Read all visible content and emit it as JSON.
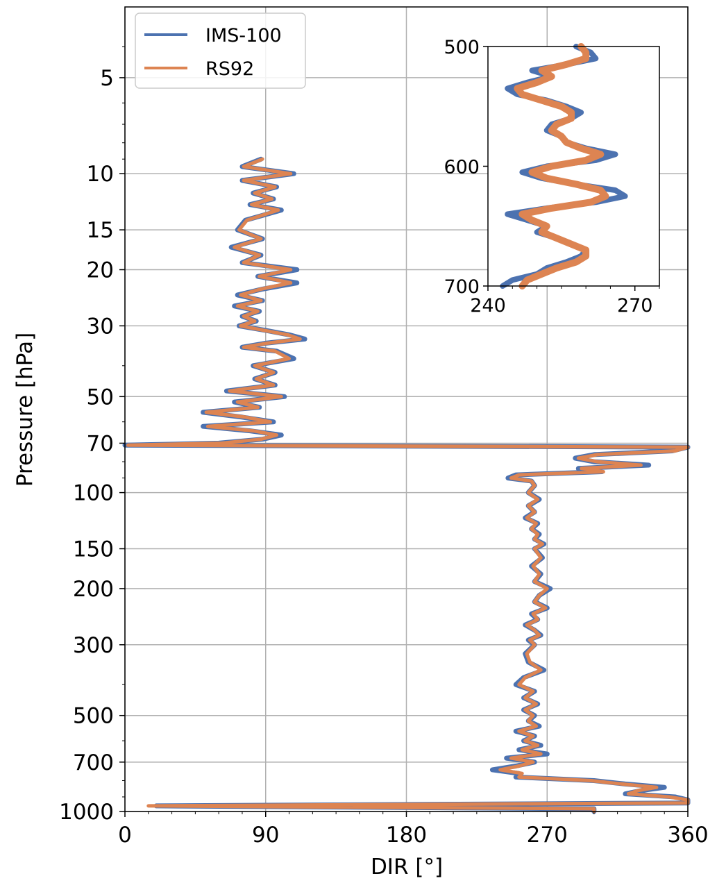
{
  "chart_data": {
    "type": "line",
    "xlabel": "DIR [°]",
    "ylabel": "Pressure [hPa]",
    "xlim": [
      0,
      360
    ],
    "ylim": [
      1000,
      3
    ],
    "yscale": "log",
    "grid": true,
    "legend_position": "top-left",
    "x_ticks": [
      "0",
      "90",
      "180",
      "270",
      "360"
    ],
    "y_ticks": [
      "5",
      "10",
      "15",
      "20",
      "30",
      "50",
      "70",
      "100",
      "150",
      "200",
      "300",
      "500",
      "700",
      "1000"
    ],
    "series": [
      {
        "name": "IMS-100",
        "color": "#4c72b0",
        "y": [
          9,
          9.5,
          10,
          10.5,
          11,
          11.5,
          12,
          12.5,
          13,
          14,
          15,
          16,
          17,
          18,
          19,
          20,
          21,
          22,
          23,
          24,
          25,
          26,
          27,
          28,
          29,
          30,
          31,
          32,
          33,
          34,
          35,
          36,
          38,
          40,
          42,
          44,
          46,
          48,
          50,
          52,
          54,
          56,
          58,
          60,
          62,
          64,
          66,
          68,
          70,
          71,
          72,
          74,
          76,
          78,
          80,
          82,
          84,
          86,
          88,
          90,
          92,
          95,
          100,
          105,
          110,
          115,
          120,
          125,
          130,
          135,
          140,
          145,
          150,
          160,
          170,
          180,
          190,
          200,
          210,
          220,
          230,
          240,
          250,
          260,
          270,
          280,
          290,
          300,
          320,
          340,
          360,
          380,
          400,
          420,
          440,
          460,
          480,
          500,
          520,
          540,
          560,
          580,
          600,
          620,
          640,
          660,
          680,
          700,
          720,
          740,
          760,
          780,
          800,
          820,
          840,
          860,
          880,
          900,
          920,
          940,
          960,
          980,
          1000
        ],
        "x": [
          87,
          75,
          108,
          75,
          97,
          82,
          95,
          80,
          100,
          77,
          72,
          88,
          68,
          87,
          75,
          110,
          85,
          110,
          88,
          72,
          88,
          70,
          86,
          75,
          84,
          73,
          90,
          105,
          115,
          90,
          75,
          97,
          108,
          82,
          96,
          83,
          96,
          65,
          102,
          70,
          86,
          50,
          75,
          95,
          50,
          80,
          100,
          88,
          60,
          0,
          360,
          350,
          300,
          288,
          300,
          335,
          290,
          305,
          250,
          245,
          260,
          262,
          258,
          265,
          258,
          262,
          256,
          264,
          260,
          265,
          262,
          268,
          262,
          267,
          260,
          266,
          262,
          272,
          265,
          262,
          270,
          260,
          264,
          256,
          262,
          266,
          258,
          262,
          256,
          258,
          268,
          255,
          250,
          262,
          255,
          264,
          255,
          262,
          258,
          265,
          250,
          262,
          255,
          266,
          252,
          270,
          244,
          262,
          250,
          235,
          252,
          250,
          300,
          320,
          345,
          330,
          320,
          352,
          360,
          360,
          20,
          300,
          300
        ]
      },
      {
        "name": "RS92",
        "color": "#dd8452",
        "y": [
          9,
          9.5,
          10,
          10.5,
          11,
          11.5,
          12,
          12.5,
          13,
          14,
          15,
          16,
          17,
          18,
          19,
          20,
          21,
          22,
          23,
          24,
          25,
          26,
          27,
          28,
          29,
          30,
          31,
          32,
          33,
          34,
          35,
          36,
          38,
          40,
          42,
          44,
          46,
          48,
          50,
          52,
          54,
          56,
          58,
          60,
          62,
          64,
          66,
          68,
          70,
          71,
          72,
          74,
          76,
          78,
          80,
          82,
          84,
          86,
          88,
          90,
          92,
          95,
          100,
          105,
          110,
          115,
          120,
          125,
          130,
          135,
          140,
          145,
          150,
          160,
          170,
          180,
          190,
          200,
          210,
          220,
          230,
          240,
          250,
          260,
          270,
          280,
          290,
          300,
          320,
          340,
          360,
          380,
          400,
          420,
          440,
          460,
          480,
          500,
          520,
          540,
          560,
          580,
          600,
          620,
          640,
          660,
          680,
          700,
          720,
          740,
          760,
          780,
          800,
          820,
          840,
          860,
          880,
          900,
          920,
          940,
          960,
          980,
          1000
        ],
        "x": [
          88,
          76,
          106,
          76,
          96,
          83,
          94,
          81,
          98,
          78,
          73,
          87,
          70,
          86,
          76,
          106,
          86,
          106,
          87,
          74,
          87,
          72,
          85,
          76,
          83,
          74,
          89,
          104,
          112,
          91,
          76,
          96,
          105,
          83,
          95,
          84,
          95,
          67,
          100,
          72,
          85,
          52,
          77,
          93,
          53,
          82,
          97,
          87,
          62,
          2,
          360,
          352,
          302,
          290,
          302,
          330,
          292,
          306,
          252,
          247,
          260,
          262,
          258,
          264,
          258,
          262,
          257,
          263,
          260,
          264,
          262,
          267,
          262,
          266,
          261,
          265,
          262,
          270,
          265,
          262,
          269,
          261,
          264,
          257,
          262,
          265,
          259,
          262,
          257,
          259,
          266,
          256,
          252,
          261,
          256,
          263,
          256,
          261,
          258,
          263,
          252,
          261,
          256,
          264,
          254,
          266,
          247,
          261,
          252,
          240,
          254,
          252,
          298,
          318,
          340,
          328,
          322,
          348,
          360,
          360,
          15,
          300,
          300
        ]
      }
    ],
    "inset": {
      "xlim": [
        240,
        275
      ],
      "ylim": [
        700,
        500
      ],
      "x_ticks": [
        "240",
        "270"
      ],
      "y_ticks": [
        "500",
        "600",
        "700"
      ],
      "series": [
        {
          "name": "IMS-100",
          "y": [
            500,
            505,
            510,
            515,
            520,
            525,
            530,
            535,
            540,
            545,
            550,
            555,
            560,
            565,
            570,
            575,
            580,
            585,
            590,
            595,
            600,
            605,
            610,
            615,
            620,
            625,
            630,
            635,
            640,
            645,
            650,
            655,
            660,
            665,
            670,
            675,
            680,
            685,
            690,
            695,
            700
          ],
          "x": [
            258,
            261,
            262,
            256,
            249,
            253,
            248,
            244,
            246,
            252,
            256,
            259,
            257,
            253,
            252,
            255,
            256,
            260,
            266,
            262,
            252,
            247,
            251,
            258,
            266,
            268,
            262,
            252,
            244,
            248,
            252,
            250,
            254,
            257,
            260,
            259,
            256,
            252,
            250,
            245,
            243
          ]
        },
        {
          "name": "RS92",
          "y": [
            500,
            505,
            510,
            515,
            520,
            525,
            530,
            535,
            540,
            545,
            550,
            555,
            560,
            565,
            570,
            575,
            580,
            585,
            590,
            595,
            600,
            605,
            610,
            615,
            620,
            625,
            630,
            635,
            640,
            645,
            650,
            655,
            660,
            665,
            670,
            675,
            680,
            685,
            690,
            695,
            700
          ],
          "x": [
            259,
            260,
            260,
            256,
            251,
            253,
            250,
            246,
            247,
            251,
            255,
            257,
            257,
            254,
            253,
            255,
            256,
            259,
            263,
            260,
            253,
            249,
            252,
            258,
            263,
            264,
            261,
            253,
            247,
            249,
            252,
            251,
            254,
            257,
            260,
            260,
            258,
            254,
            251,
            248,
            247
          ]
        }
      ]
    }
  }
}
